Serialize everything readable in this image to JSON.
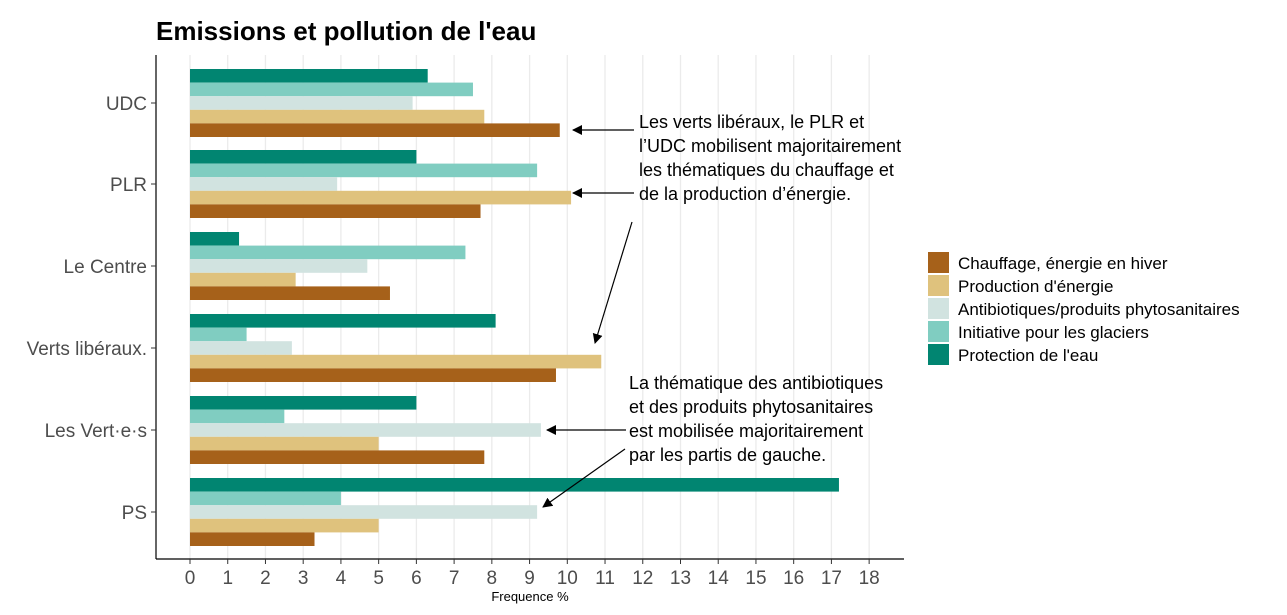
{
  "chart_data": {
    "type": "bar",
    "orientation": "horizontal",
    "title": "Emissions et pollution de l'eau",
    "xlabel": "Frequence %",
    "ylabel": "",
    "xlim": [
      0,
      18
    ],
    "xticks": [
      "0",
      "1",
      "2",
      "3",
      "4",
      "5",
      "6",
      "7",
      "8",
      "9",
      "10",
      "11",
      "12",
      "13",
      "14",
      "15",
      "16",
      "17",
      "18"
    ],
    "grid": "vertical",
    "legend_position": "right",
    "categories": [
      "UDC",
      "PLR",
      "Le Centre",
      "Verts libéraux.",
      "Les Vert·e·s",
      "PS"
    ],
    "series": [
      {
        "name": "Chauffage, énergie en hiver",
        "color": "#a6611a",
        "values": [
          9.8,
          7.7,
          5.3,
          9.7,
          7.8,
          3.3
        ]
      },
      {
        "name": "Production d'énergie",
        "color": "#dfc27d",
        "values": [
          7.8,
          10.1,
          2.8,
          10.9,
          5.0,
          5.0
        ]
      },
      {
        "name": "Antibiotiques/produits phytosanitaires",
        "color": "#d1e3e0",
        "values": [
          5.9,
          3.9,
          4.7,
          2.7,
          9.3,
          9.2
        ]
      },
      {
        "name": "Initiative pour les glaciers",
        "color": "#80cdc1",
        "values": [
          7.5,
          9.2,
          7.3,
          1.5,
          2.5,
          4.0
        ]
      },
      {
        "name": "Protection de l'eau",
        "color": "#018571",
        "values": [
          6.3,
          6.0,
          1.3,
          8.1,
          6.0,
          17.2
        ]
      }
    ],
    "annotations": [
      {
        "lines": [
          "Les verts libéraux, le PLR et",
          "l’UDC mobilisent majoritairement",
          "les thématiques du chauffage et",
          "de la production d’énergie."
        ]
      },
      {
        "lines": [
          "La thématique des antibiotiques",
          "et des produits phytosanitaires",
          "est mobilisée majoritairement",
          "par les partis de gauche."
        ]
      }
    ]
  }
}
